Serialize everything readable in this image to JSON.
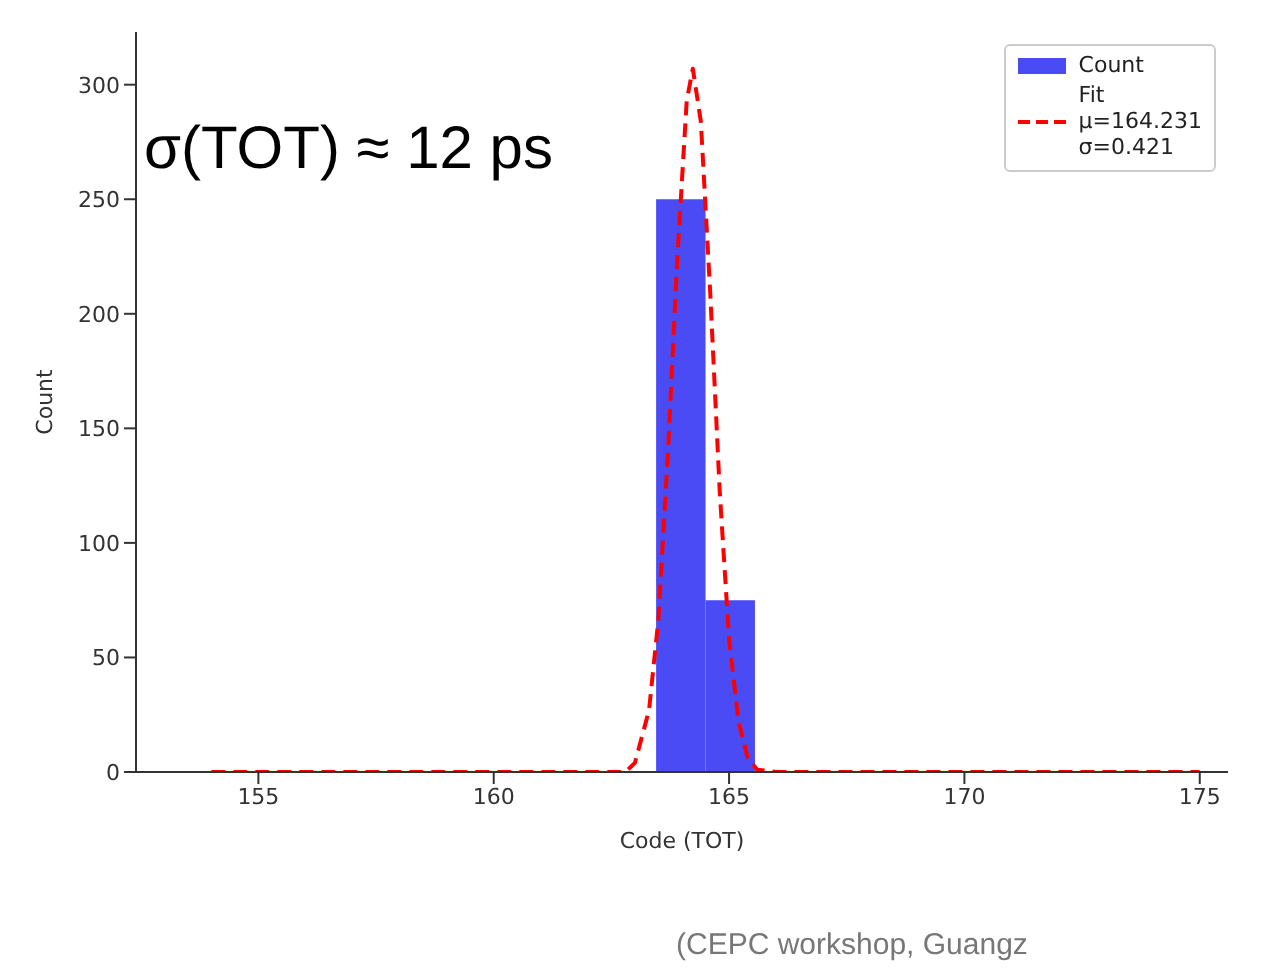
{
  "chart_data": {
    "type": "histogram",
    "xlabel": "Code (TOT)",
    "ylabel": "Count",
    "xlim": [
      152.4,
      175.6
    ],
    "ylim": [
      0,
      323
    ],
    "xticks": [
      155,
      160,
      165,
      170,
      175
    ],
    "yticks": [
      0,
      50,
      100,
      150,
      200,
      250,
      300
    ],
    "grid": false,
    "legend": "top right",
    "series": [
      {
        "name": "Count",
        "color": "#4b4bf5",
        "bins": [
          163.45,
          164.5,
          165.55
        ],
        "values": [
          250,
          75
        ]
      },
      {
        "type": "line",
        "name": "Fit\nμ=164.231\nσ=0.421",
        "color": "#ff0000",
        "line_style": "dashed",
        "marker": "none",
        "x": [
          154,
          162.8,
          163.0,
          163.3,
          163.5,
          163.7,
          163.9,
          164.1,
          164.23,
          164.4,
          164.6,
          164.8,
          165.0,
          165.2,
          165.4,
          165.6,
          166,
          175
        ],
        "values": [
          0,
          0,
          4,
          27,
          67,
          139,
          224,
          293,
          307,
          284,
          209,
          123,
          58,
          22,
          6,
          1,
          0,
          0
        ]
      }
    ],
    "annotations": [
      "σ(TOT) ≈ 12 ps",
      "(CEPC workshop, Guangz"
    ]
  }
}
